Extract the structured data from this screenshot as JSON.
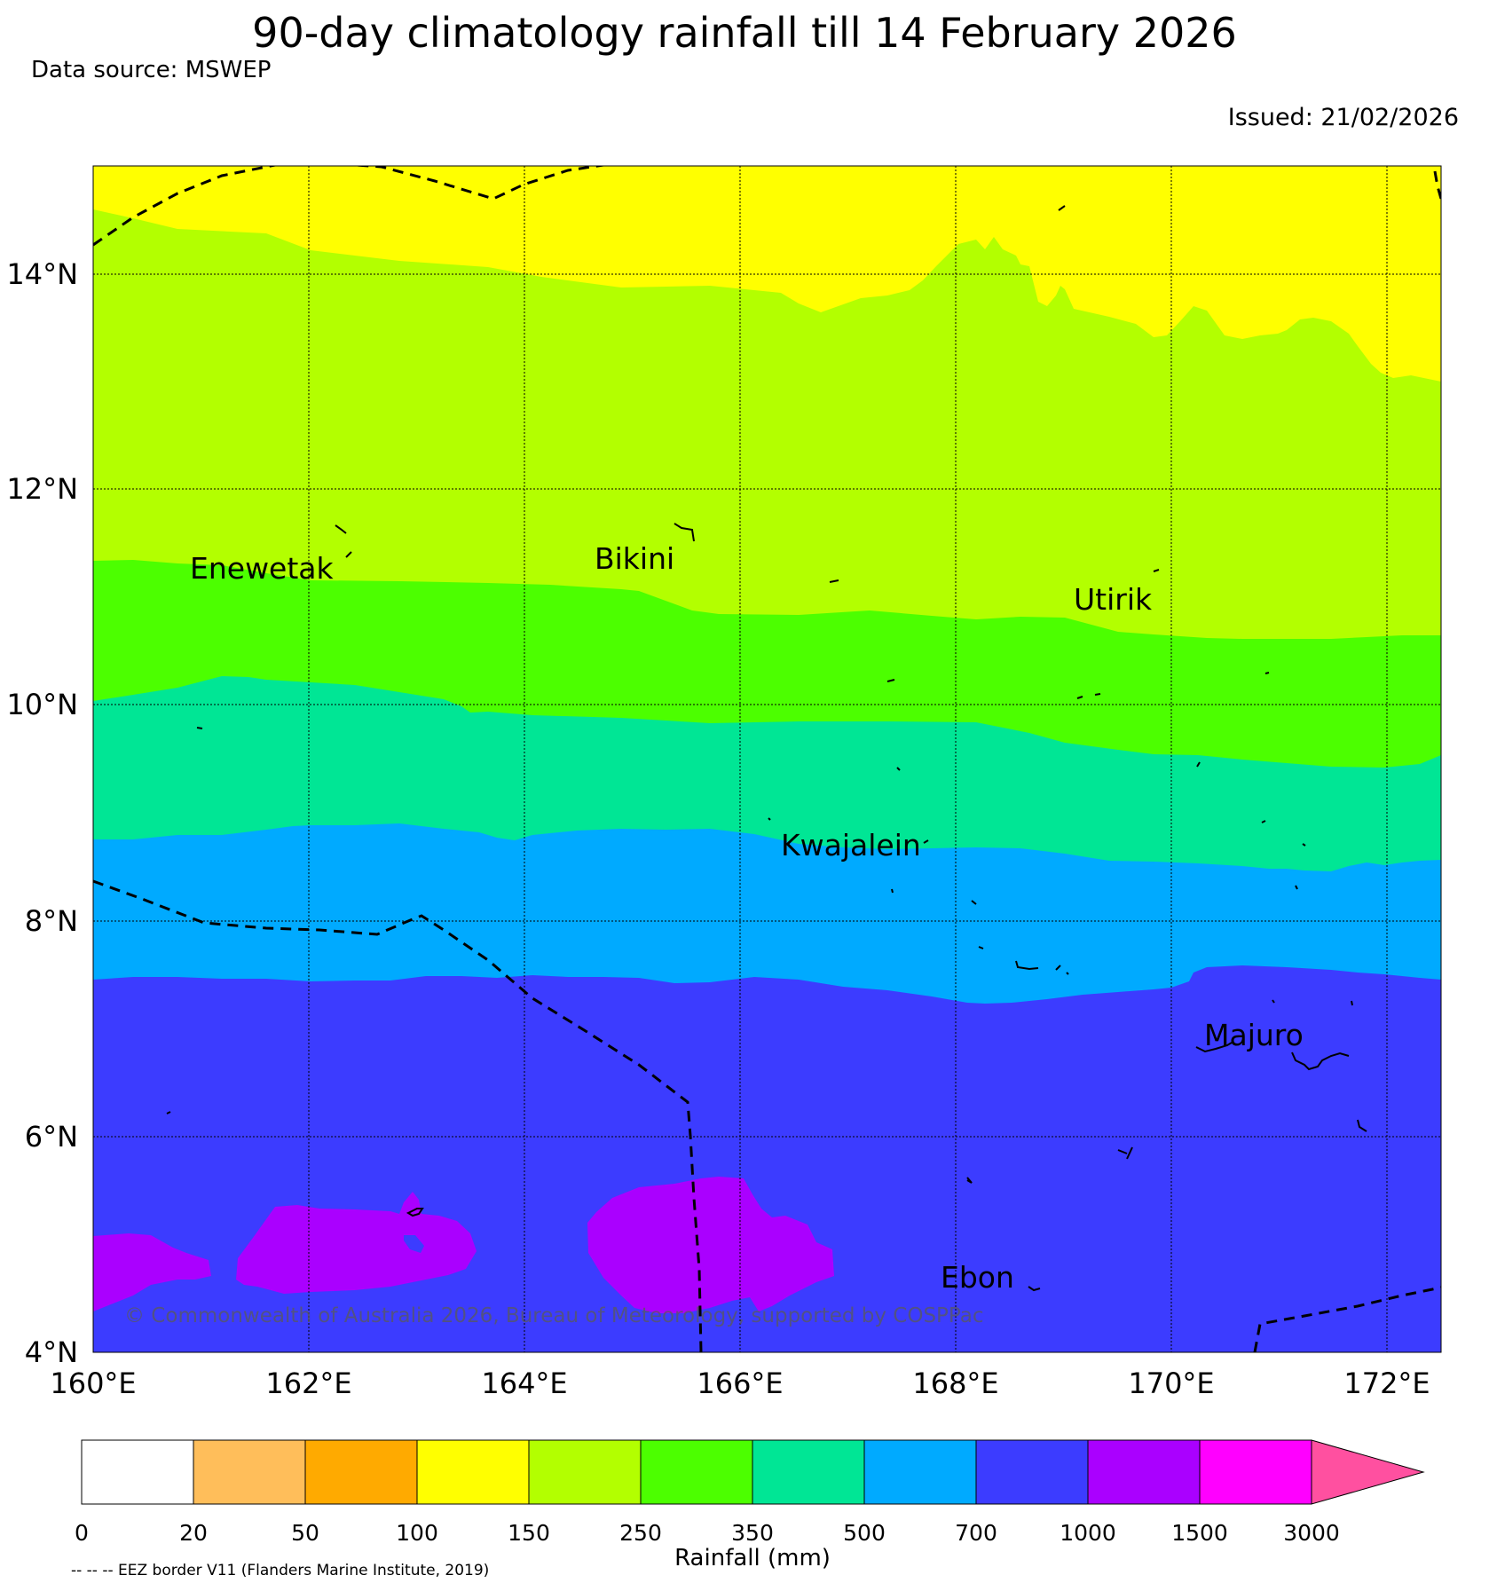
{
  "title": "90-day climatology rainfall till 14 February 2026",
  "data_source": "Data source: MSWEP",
  "issued": "Issued: 21/02/2026",
  "copyright": "© Commonwealth of Australia 2026, Bureau of Meteorology, supported by COSPPac",
  "footnote": "-- -- -- EEZ border V11 (Flanders Marine Institute, 2019)",
  "map": {
    "lon_range": [
      160,
      172.5
    ],
    "lat_range": [
      4,
      15
    ],
    "lon_ticks": [
      "160°E",
      "162°E",
      "164°E",
      "166°E",
      "168°E",
      "170°E",
      "172°E"
    ],
    "lat_ticks": [
      "14°N",
      "12°N",
      "10°N",
      "8°N",
      "6°N",
      "4°N"
    ],
    "places": [
      {
        "name": "Enewetak",
        "lon": 162.25,
        "lat": 11.35
      },
      {
        "name": "Bikini",
        "lon": 165.6,
        "lat": 11.6
      },
      {
        "name": "Utirik",
        "lon": 169.85,
        "lat": 11.25
      },
      {
        "name": "Kwajalein",
        "lon": 167.7,
        "lat": 8.7
      },
      {
        "name": "Majuro",
        "lon": 171.2,
        "lat": 7.1
      },
      {
        "name": "Ebon",
        "lon": 168.7,
        "lat": 4.6
      }
    ]
  },
  "colorbar": {
    "title": "Rainfall (mm)",
    "levels": [
      "0",
      "20",
      "50",
      "100",
      "150",
      "250",
      "350",
      "500",
      "700",
      "1000",
      "1500",
      "3000"
    ],
    "colors": [
      "#ffffff",
      "#ffbe5a",
      "#ffaa00",
      "#ffff00",
      "#b3ff00",
      "#4cff00",
      "#00e695",
      "#00aaff",
      "#3c3cff",
      "#aa00ff",
      "#ff00ff",
      "#ff50a0"
    ]
  }
}
